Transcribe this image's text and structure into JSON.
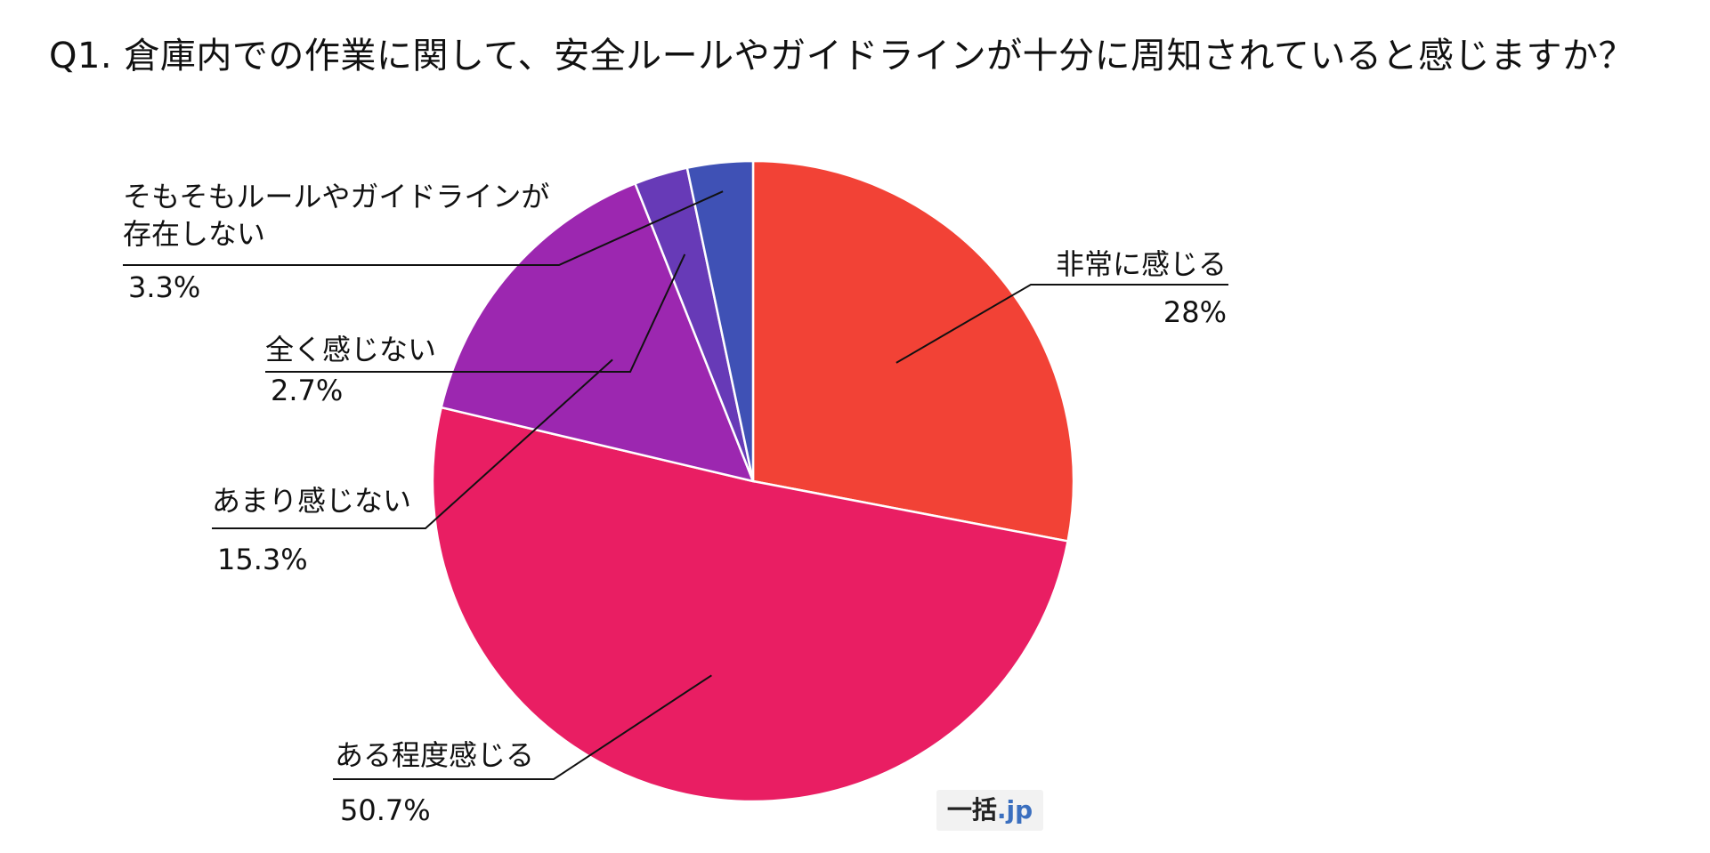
{
  "chart_data": {
    "type": "pie",
    "title": "Q1. 倉庫内での作業に関して、安全ルールやガイドラインが十分に周知されていると感じますか？",
    "slices": [
      {
        "label": "非常に感じる",
        "value": 28,
        "value_label": "28%",
        "color": "#f24236"
      },
      {
        "label": "ある程度感じる",
        "value": 50.7,
        "value_label": "50.7%",
        "color": "#e91e63"
      },
      {
        "label": "あまり感じない",
        "value": 15.3,
        "value_label": "15.3%",
        "color": "#9c27b0"
      },
      {
        "label": "全く感じない",
        "value": 2.7,
        "value_label": "2.7%",
        "color": "#673ab7"
      },
      {
        "label": "そもそもルールやガイドラインが存在しない",
        "value": 3.3,
        "value_label": "3.3%",
        "color": "#3f51b5"
      }
    ],
    "start": "12 o'clock",
    "direction": "clockwise",
    "legend": "callout labels"
  },
  "watermark": {
    "main": "一括",
    "suffix": ".jp"
  }
}
